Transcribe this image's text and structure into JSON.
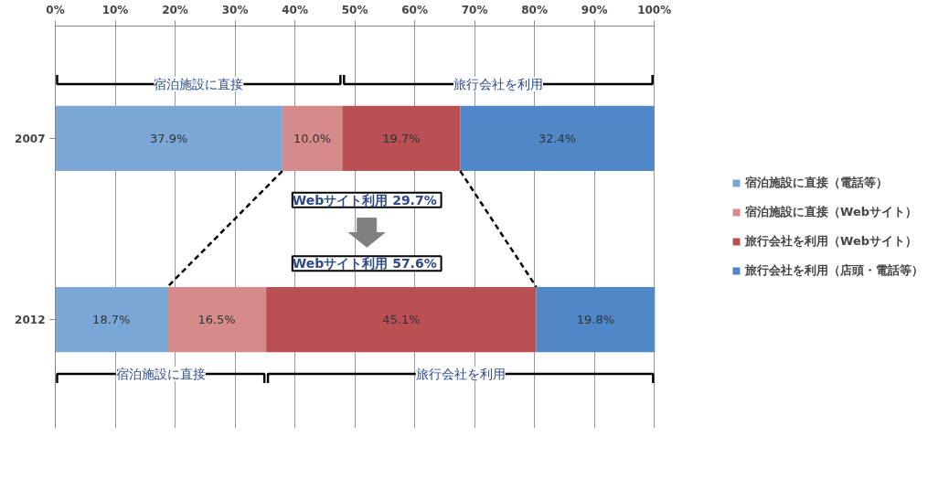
{
  "chart_data": {
    "type": "bar",
    "orientation": "horizontal",
    "stacked": true,
    "categories": [
      "2007",
      "2012"
    ],
    "series": [
      {
        "name": "宿泊施設に直接（電話等）",
        "color": "#7ba7d7",
        "values": [
          37.9,
          18.7
        ],
        "value_labels": [
          "37.9%",
          "18.7%"
        ]
      },
      {
        "name": "宿泊施設に直接（Webサイト）",
        "color": "#d68b8b",
        "values": [
          10.0,
          16.5
        ],
        "value_labels": [
          "10.0%",
          "16.5%"
        ]
      },
      {
        "name": "旅行会社を利用（Webサイト）",
        "color": "#b95053",
        "values": [
          19.7,
          45.1
        ],
        "value_labels": [
          "19.7%",
          "45.1%"
        ]
      },
      {
        "name": "旅行会社を利用（店頭・電話等）",
        "color": "#4f87c7",
        "values": [
          32.4,
          19.8
        ],
        "value_labels": [
          "32.4%",
          "19.8%"
        ]
      }
    ],
    "xlim": [
      0,
      100
    ],
    "xticks": [
      {
        "value": 0,
        "label": "0%"
      },
      {
        "value": 10,
        "label": "10%"
      },
      {
        "value": 20,
        "label": "20%"
      },
      {
        "value": 30,
        "label": "30%"
      },
      {
        "value": 40,
        "label": "40%"
      },
      {
        "value": 50,
        "label": "50%"
      },
      {
        "value": 60,
        "label": "60%"
      },
      {
        "value": 70,
        "label": "70%"
      },
      {
        "value": 80,
        "label": "80%"
      },
      {
        "value": 90,
        "label": "90%"
      },
      {
        "value": 100,
        "label": "100%"
      }
    ],
    "grid": "x",
    "legend": "right",
    "annotations": [
      "宿泊施設に直接",
      "旅行会社を利用",
      "宿泊施設に直接",
      "旅行会社を利用",
      "Webサイト利用  29.7%",
      "Webサイト利用  57.6%"
    ]
  }
}
